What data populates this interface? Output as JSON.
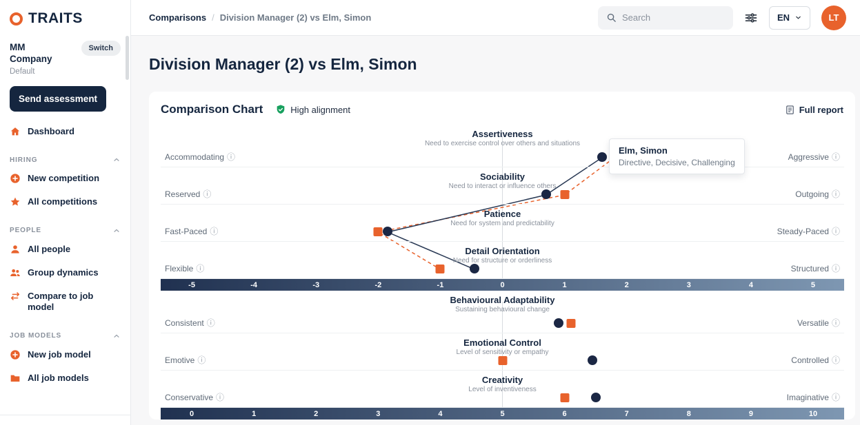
{
  "brand": {
    "logo_text": "TRAITS"
  },
  "topbar": {
    "breadcrumb_root": "Comparisons",
    "breadcrumb_sep": "/",
    "breadcrumb_current": "Division Manager (2) vs Elm, Simon",
    "search_placeholder": "Search",
    "lang": "EN",
    "lang_chevron": "⌄",
    "avatar_initials": "LT"
  },
  "sidebar": {
    "company_name": "MM Company",
    "switch_label": "Switch",
    "company_sub": "Default",
    "cta": "Send assessment",
    "dashboard": {
      "label": "Dashboard",
      "icon": "home"
    },
    "sections": [
      {
        "label": "HIRING",
        "items": [
          {
            "label": "New competition",
            "icon": "plus-circle"
          },
          {
            "label": "All competitions",
            "icon": "star"
          }
        ]
      },
      {
        "label": "PEOPLE",
        "items": [
          {
            "label": "All people",
            "icon": "person"
          },
          {
            "label": "Group dynamics",
            "icon": "people"
          },
          {
            "label": "Compare to job model",
            "icon": "compare"
          }
        ]
      },
      {
        "label": "JOB MODELS",
        "items": [
          {
            "label": "New job model",
            "icon": "plus-circle"
          },
          {
            "label": "All job models",
            "icon": "folder"
          }
        ]
      }
    ]
  },
  "page": {
    "title": "Division Manager (2) vs Elm, Simon"
  },
  "card": {
    "title": "Comparison Chart",
    "alignment_badge": "High alignment",
    "full_report": "Full report"
  },
  "tooltip": {
    "name": "Elm, Simon",
    "description": "Directive, Decisive, Challenging"
  },
  "chart_data": {
    "type": "scatter",
    "series": [
      {
        "name": "Elm, Simon",
        "marker": "circle",
        "color": "#1b2744"
      },
      {
        "name": "Division Manager (2)",
        "marker": "square",
        "color": "#e8622c"
      }
    ],
    "sections": [
      {
        "scale_min": -5,
        "scale_max": 5,
        "ticks": [
          "-5",
          "-4",
          "-3",
          "-2",
          "-1",
          "0",
          "1",
          "2",
          "3",
          "4",
          "5"
        ],
        "connect_lines": true,
        "traits": [
          {
            "name": "Assertiveness",
            "description": "Need to exercise control over others and situations",
            "left_label": "Accommodating",
            "right_label": "Aggressive",
            "person_value": 1.6,
            "job_value": 1.8
          },
          {
            "name": "Sociability",
            "description": "Need to interact or influence others",
            "left_label": "Reserved",
            "right_label": "Outgoing",
            "person_value": 0.7,
            "job_value": 1.0
          },
          {
            "name": "Patience",
            "description": "Need for system and predictability",
            "left_label": "Fast-Paced",
            "right_label": "Steady-Paced",
            "person_value": -1.85,
            "job_value": -2.0
          },
          {
            "name": "Detail Orientation",
            "description": "Need for structure or orderliness",
            "left_label": "Flexible",
            "right_label": "Structured",
            "person_value": -0.45,
            "job_value": -1.0
          }
        ]
      },
      {
        "scale_min": 0,
        "scale_max": 10,
        "ticks": [
          "0",
          "1",
          "2",
          "3",
          "4",
          "5",
          "6",
          "7",
          "8",
          "9",
          "10"
        ],
        "connect_lines": false,
        "traits": [
          {
            "name": "Behavioural Adaptability",
            "description": "Sustaining behavioural change",
            "left_label": "Consistent",
            "right_label": "Versatile",
            "person_value": 5.9,
            "job_value": 6.1
          },
          {
            "name": "Emotional Control",
            "description": "Level of sensitivity or empathy",
            "left_label": "Emotive",
            "right_label": "Controlled",
            "person_value": 6.45,
            "job_value": 5.0
          },
          {
            "name": "Creativity",
            "description": "Level of inventiveness",
            "left_label": "Conservative",
            "right_label": "Imaginative",
            "person_value": 6.5,
            "job_value": 6.0
          }
        ]
      }
    ]
  }
}
